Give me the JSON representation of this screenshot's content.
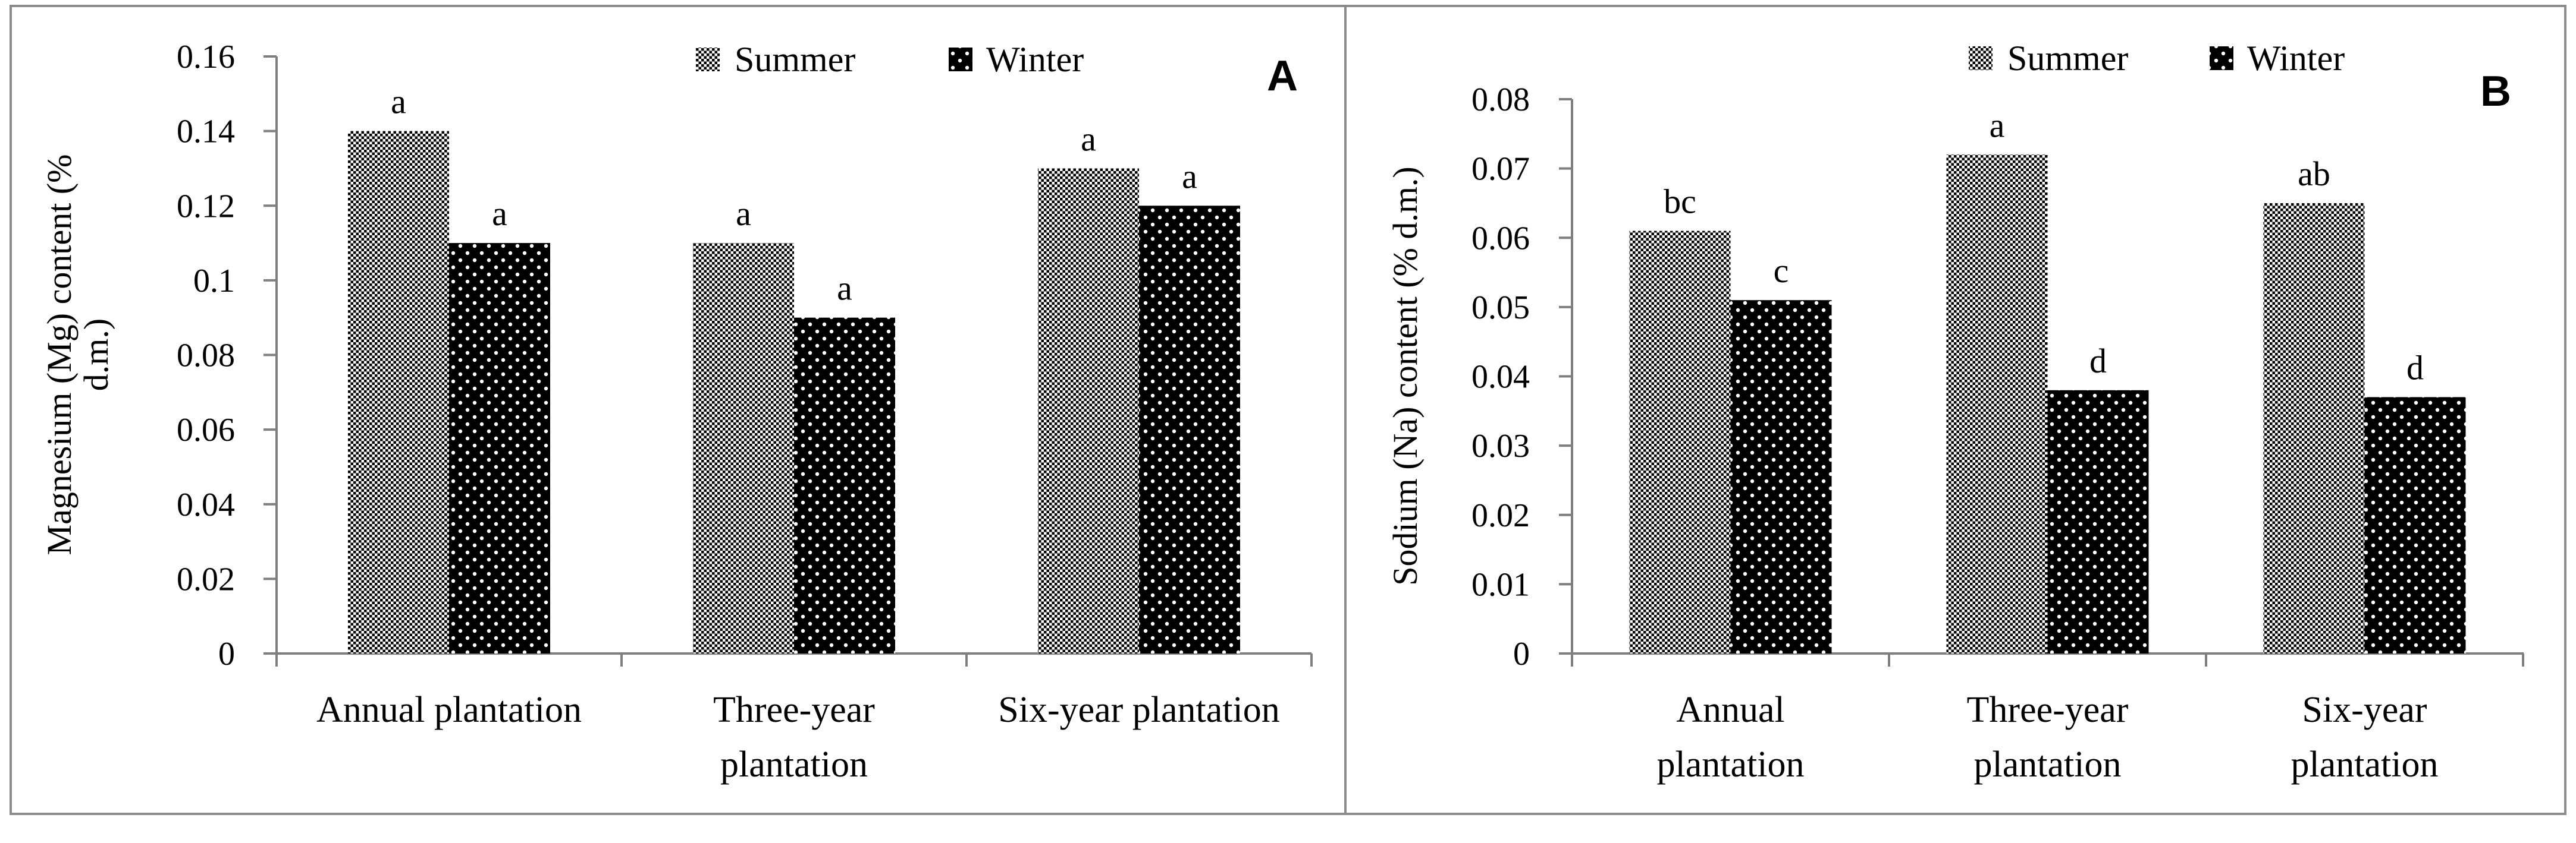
{
  "colors": {
    "summer_dot": "#000000",
    "summer_bg": "#ffffff",
    "winter_bg": "#000000",
    "winter_dot": "#ffffff",
    "axis": "#7f7f7f",
    "frame": "#8c8c8c"
  },
  "chart_data": [
    {
      "type": "bar",
      "panel": "A",
      "title": "",
      "xlabel": "",
      "ylabel": "Magnesium (Mg) content (% d.m.)",
      "ylabel_lines": [
        "Magnesium (Mg) content (%",
        "d.m.)"
      ],
      "ylim": [
        0,
        0.16
      ],
      "yticks": [
        0,
        0.02,
        0.04,
        0.06,
        0.08,
        0.1,
        0.12,
        0.14,
        0.16
      ],
      "ytick_labels": [
        "0",
        "0.02",
        "0.04",
        "0.06",
        "0.08",
        "0.1",
        "0.12",
        "0.14",
        "0.16"
      ],
      "categories": [
        "Annual plantation",
        "Three-year plantation",
        "Six-year plantation"
      ],
      "category_lines": [
        [
          "Annual plantation"
        ],
        [
          "Three-year",
          "plantation"
        ],
        [
          "Six-year plantation"
        ]
      ],
      "legend": [
        "Summer",
        "Winter"
      ],
      "legend_position": "top",
      "series": [
        {
          "name": "Summer",
          "values": [
            0.14,
            0.11,
            0.13
          ],
          "labels": [
            "a",
            "a",
            "a"
          ]
        },
        {
          "name": "Winter",
          "values": [
            0.11,
            0.09,
            0.12
          ],
          "labels": [
            "a",
            "a",
            "a"
          ]
        }
      ]
    },
    {
      "type": "bar",
      "panel": "B",
      "title": "",
      "xlabel": "",
      "ylabel": "Sodium (Na) content (% d.m.)",
      "ylabel_lines": [
        "Sodium (Na) content (% d.m.)"
      ],
      "ylim": [
        0,
        0.08
      ],
      "yticks": [
        0,
        0.01,
        0.02,
        0.03,
        0.04,
        0.05,
        0.06,
        0.07,
        0.08
      ],
      "ytick_labels": [
        "0",
        "0.01",
        "0.02",
        "0.03",
        "0.04",
        "0.05",
        "0.06",
        "0.07",
        "0.08"
      ],
      "categories": [
        "Annual plantation",
        "Three-year plantation",
        "Six-year plantation"
      ],
      "category_lines": [
        [
          "Annual",
          "plantation"
        ],
        [
          "Three-year",
          "plantation"
        ],
        [
          "Six-year",
          "plantation"
        ]
      ],
      "legend": [
        "Summer",
        "Winter"
      ],
      "legend_position": "top",
      "series": [
        {
          "name": "Summer",
          "values": [
            0.061,
            0.072,
            0.065
          ],
          "labels": [
            "bc",
            "a",
            "ab"
          ]
        },
        {
          "name": "Winter",
          "values": [
            0.051,
            0.038,
            0.037
          ],
          "labels": [
            "c",
            "d",
            "d"
          ]
        }
      ]
    }
  ]
}
